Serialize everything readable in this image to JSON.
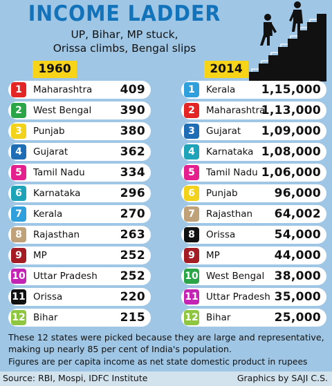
{
  "colors": {
    "title": "#1273bb",
    "panel": "#9fc6e4",
    "year_badge": "#f7d417",
    "rank": [
      "#e32525",
      "#2ba548",
      "#f2d21a",
      "#1f6db4",
      "#e3208d",
      "#1ea3b8",
      "#2fa0dc",
      "#c0a27a",
      "#a51d24",
      "#c324b3",
      "#111111",
      "#8ec63f"
    ]
  },
  "title": "INCOME LADDER",
  "subtitle_line1": "UP, Bihar, MP stuck,",
  "subtitle_line2": "Orissa climbs, Bengal slips",
  "stairs_icon": "people-climbing-stairs-icon",
  "chart_data": [
    {
      "type": "table",
      "year": "1960",
      "rows": [
        {
          "rank": "1",
          "state": "Maharashtra",
          "value": "409",
          "color": "#e32525"
        },
        {
          "rank": "2",
          "state": "West Bengal",
          "value": "390",
          "color": "#2ba548"
        },
        {
          "rank": "3",
          "state": "Punjab",
          "value": "380",
          "color": "#f2d21a"
        },
        {
          "rank": "4",
          "state": "Gujarat",
          "value": "362",
          "color": "#1f6db4"
        },
        {
          "rank": "5",
          "state": "Tamil Nadu",
          "value": "334",
          "color": "#e3208d"
        },
        {
          "rank": "6",
          "state": "Karnataka",
          "value": "296",
          "color": "#1ea3b8"
        },
        {
          "rank": "7",
          "state": "Kerala",
          "value": "270",
          "color": "#2fa0dc"
        },
        {
          "rank": "8",
          "state": "Rajasthan",
          "value": "263",
          "color": "#c0a27a"
        },
        {
          "rank": "9",
          "state": "MP",
          "value": "252",
          "color": "#a51d24"
        },
        {
          "rank": "10",
          "state": "Uttar Pradesh",
          "value": "252",
          "color": "#c324b3"
        },
        {
          "rank": "11",
          "state": "Orissa",
          "value": "220",
          "color": "#111111"
        },
        {
          "rank": "12",
          "state": "Bihar",
          "value": "215",
          "color": "#8ec63f"
        }
      ]
    },
    {
      "type": "table",
      "year": "2014",
      "rows": [
        {
          "rank": "1",
          "state": "Kerala",
          "value": "1,15,000",
          "color": "#2fa0dc"
        },
        {
          "rank": "2",
          "state": "Maharashtra",
          "value": "1,13,000",
          "color": "#e32525"
        },
        {
          "rank": "3",
          "state": "Gujarat",
          "value": "1,09,000",
          "color": "#1f6db4"
        },
        {
          "rank": "4",
          "state": "Karnataka",
          "value": "1,08,000",
          "color": "#1ea3b8"
        },
        {
          "rank": "5",
          "state": "Tamil Nadu",
          "value": "1,06,000",
          "color": "#e3208d"
        },
        {
          "rank": "6",
          "state": "Punjab",
          "value": "96,000",
          "color": "#f2d21a"
        },
        {
          "rank": "7",
          "state": "Rajasthan",
          "value": "64,002",
          "color": "#c0a27a"
        },
        {
          "rank": "8",
          "state": "Orissa",
          "value": "54,000",
          "color": "#111111"
        },
        {
          "rank": "9",
          "state": "MP",
          "value": "44,000",
          "color": "#a51d24"
        },
        {
          "rank": "10",
          "state": "West Bengal",
          "value": "38,000",
          "color": "#2ba548"
        },
        {
          "rank": "11",
          "state": "Uttar Pradesh",
          "value": "35,000",
          "color": "#c324b3"
        },
        {
          "rank": "12",
          "state": "Bihar",
          "value": "25,000",
          "color": "#8ec63f"
        }
      ]
    }
  ],
  "note1": "These 12 states were picked because they are large and representative, making up nearly 85 per cent of India's population.",
  "note2": "Figures are per capita income as net state domestic product in rupees",
  "source": "Source: RBI, Mospi, IDFC Institute",
  "credit": "Graphics by SAJI C.S."
}
